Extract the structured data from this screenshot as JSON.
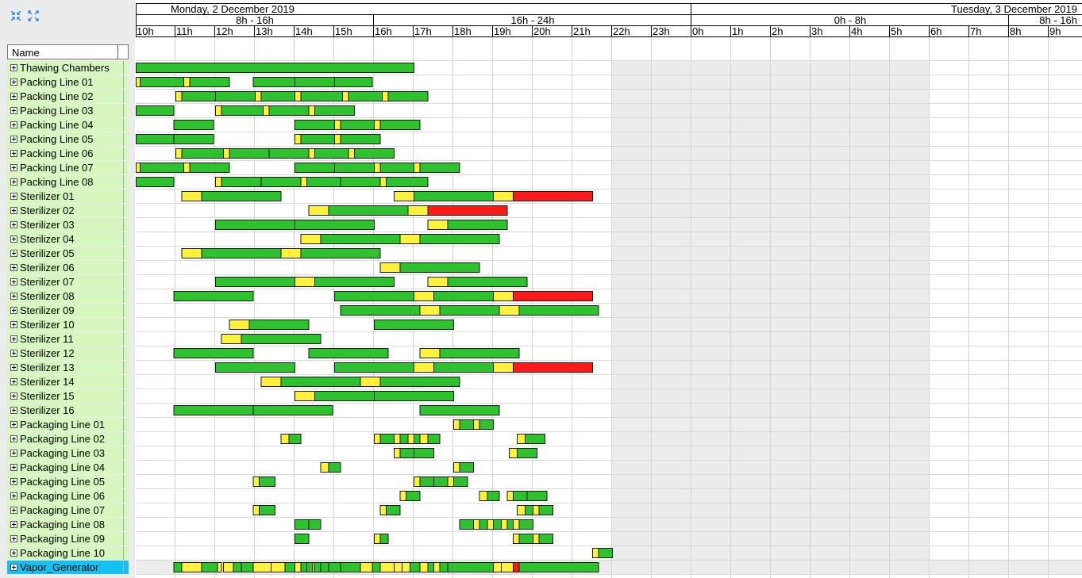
{
  "toolbar": {
    "collapse_icon": "collapse-arrows-icon",
    "expand_icon": "expand-arrows-icon"
  },
  "list": {
    "header": "Name",
    "rows": [
      "Thawing Chambers",
      "Packing Line 01",
      "Packing Line 02",
      "Packing Line 03",
      "Packing Line 04",
      "Packing Line 05",
      "Packing Line 06",
      "Packing Line 07",
      "Packing Line 08",
      "Sterilizer 01",
      "Sterilizer 02",
      "Sterilizer 03",
      "Sterilizer 04",
      "Sterilizer 05",
      "Sterilizer 06",
      "Sterilizer 07",
      "Sterilizer 08",
      "Sterilizer 09",
      "Sterilizer 10",
      "Sterilizer 11",
      "Sterilizer 12",
      "Sterilizer 13",
      "Sterilizer 14",
      "Sterilizer 15",
      "Sterilizer 16",
      "Packaging Line 01",
      "Packaging Line 02",
      "Packaging Line 03",
      "Packaging Line 04",
      "Packaging Line 05",
      "Packaging Line 06",
      "Packaging Line 07",
      "Packaging Line 08",
      "Packaging Line 09",
      "Packaging Line 10",
      "Vapor_Generator"
    ],
    "selected_row": "Vapor_Generator"
  },
  "timeline": {
    "days": [
      {
        "label": "Monday, 2 December 2019",
        "align": "left",
        "start_hour": 8,
        "end_hour": 24
      },
      {
        "label": "Tuesday, 3 December 2019",
        "align": "right",
        "start_hour": 24,
        "end_hour": 40
      }
    ],
    "shifts": [
      {
        "label": "8h - 16h",
        "start_hour": 8,
        "end_hour": 16
      },
      {
        "label": "16h - 24h",
        "start_hour": 16,
        "end_hour": 24
      },
      {
        "label": "0h -  8h",
        "start_hour": 24,
        "end_hour": 32
      },
      {
        "label": "8h - 16h",
        "start_hour": 32,
        "end_hour": 40
      }
    ],
    "hours": [
      "10h",
      "11h",
      "12h",
      "13h",
      "14h",
      "15h",
      "16h",
      "17h",
      "18h",
      "19h",
      "20h",
      "21h",
      "22h",
      "23h",
      "0h",
      "1h",
      "2h",
      "3h",
      "4h",
      "5h",
      "6h",
      "7h",
      "8h",
      "9h"
    ],
    "first_hour": 10,
    "shaded_from_hour": 22,
    "shaded_to_hour": 30,
    "colors": {
      "processing": "#2ec22e",
      "setup": "#fff23a",
      "overdue": "#ff1a1a",
      "shade": "#ececec",
      "label_bg": "#d6f7bd",
      "selected": "#13c2f0"
    }
  },
  "tasks": [
    [
      [
        "g",
        10,
        17
      ]
    ],
    [
      [
        "y",
        10,
        10.1
      ],
      [
        "g",
        10.1,
        11.2
      ],
      [
        "y",
        11.2,
        11.35
      ],
      [
        "g",
        11.35,
        12.35
      ],
      [
        "g",
        12.95,
        14
      ],
      [
        "g",
        14,
        15
      ],
      [
        "g",
        15,
        15.95
      ]
    ],
    [
      [
        "y",
        11,
        11.15
      ],
      [
        "g",
        11.15,
        12
      ],
      [
        "g",
        12,
        13
      ],
      [
        "y",
        13,
        13.15
      ],
      [
        "g",
        13.15,
        14
      ],
      [
        "y",
        14,
        14.15
      ],
      [
        "g",
        14.15,
        15.2
      ],
      [
        "y",
        15.2,
        15.35
      ],
      [
        "g",
        15.35,
        16.2
      ],
      [
        "y",
        16.2,
        16.35
      ],
      [
        "g",
        16.35,
        17.35
      ]
    ],
    [
      [
        "g",
        10,
        10.95
      ],
      [
        "y",
        12,
        12.15
      ],
      [
        "g",
        12.15,
        13.2
      ],
      [
        "y",
        13.2,
        13.35
      ],
      [
        "g",
        13.35,
        14.35
      ],
      [
        "y",
        14.35,
        14.5
      ],
      [
        "g",
        14.5,
        15.5
      ]
    ],
    [
      [
        "g",
        10.95,
        11.95
      ],
      [
        "g",
        14,
        15
      ],
      [
        "y",
        15,
        15.15
      ],
      [
        "g",
        15.15,
        16
      ],
      [
        "y",
        16,
        16.15
      ],
      [
        "g",
        16.15,
        17.15
      ]
    ],
    [
      [
        "g",
        10,
        10.95
      ],
      [
        "g",
        10.95,
        11.95
      ],
      [
        "y",
        14,
        14.15
      ],
      [
        "g",
        14.15,
        15
      ],
      [
        "y",
        15,
        15.15
      ],
      [
        "g",
        15.15,
        16.15
      ]
    ],
    [
      [
        "y",
        11,
        11.15
      ],
      [
        "g",
        11.15,
        12.2
      ],
      [
        "y",
        12.2,
        12.35
      ],
      [
        "g",
        12.35,
        13.35
      ],
      [
        "g",
        13.35,
        14.35
      ],
      [
        "y",
        14.35,
        14.5
      ],
      [
        "g",
        14.5,
        15.35
      ],
      [
        "y",
        15.35,
        15.5
      ],
      [
        "g",
        15.5,
        16.5
      ]
    ],
    [
      [
        "y",
        10,
        10.1
      ],
      [
        "g",
        10.1,
        11.2
      ],
      [
        "y",
        11.2,
        11.35
      ],
      [
        "g",
        11.35,
        12.35
      ],
      [
        "g",
        14,
        15
      ],
      [
        "g",
        15,
        16
      ],
      [
        "y",
        16,
        16.15
      ],
      [
        "g",
        16.15,
        17
      ],
      [
        "y",
        17,
        17.15
      ],
      [
        "g",
        17.15,
        18.15
      ]
    ],
    [
      [
        "g",
        10,
        10.95
      ],
      [
        "y",
        12,
        12.15
      ],
      [
        "g",
        12.15,
        13.15
      ],
      [
        "g",
        13.15,
        14.15
      ],
      [
        "y",
        14.15,
        14.3
      ],
      [
        "g",
        14.3,
        15.15
      ],
      [
        "g",
        15.15,
        16.15
      ],
      [
        "y",
        16.15,
        16.3
      ],
      [
        "g",
        16.3,
        17.35
      ]
    ],
    [
      [
        "y",
        11.15,
        11.65
      ],
      [
        "g",
        11.65,
        13.65
      ],
      [
        "y",
        16.5,
        17
      ],
      [
        "g",
        17,
        19
      ],
      [
        "y",
        19,
        19.5
      ],
      [
        "r",
        19.5,
        21.5
      ]
    ],
    [
      [
        "y",
        14.35,
        14.85
      ],
      [
        "g",
        14.85,
        16.85
      ],
      [
        "y",
        16.85,
        17.35
      ],
      [
        "r",
        17.35,
        19.35
      ]
    ],
    [
      [
        "g",
        12,
        14
      ],
      [
        "g",
        14,
        16
      ],
      [
        "y",
        17.35,
        17.85
      ],
      [
        "g",
        17.85,
        19.35
      ]
    ],
    [
      [
        "y",
        14.15,
        14.65
      ],
      [
        "g",
        14.65,
        16.65
      ],
      [
        "y",
        16.65,
        17.15
      ],
      [
        "g",
        17.15,
        19.15
      ]
    ],
    [
      [
        "y",
        11.15,
        11.65
      ],
      [
        "g",
        11.65,
        13.65
      ],
      [
        "y",
        13.65,
        14.15
      ],
      [
        "g",
        14.15,
        16.15
      ]
    ],
    [
      [
        "y",
        16.15,
        16.65
      ],
      [
        "g",
        16.65,
        18.65
      ]
    ],
    [
      [
        "g",
        12,
        14
      ],
      [
        "y",
        14,
        14.5
      ],
      [
        "g",
        14.5,
        16.5
      ],
      [
        "y",
        17.35,
        17.85
      ],
      [
        "g",
        17.85,
        19.85
      ]
    ],
    [
      [
        "g",
        10.95,
        12.95
      ],
      [
        "g",
        15,
        17
      ],
      [
        "y",
        17,
        17.5
      ],
      [
        "g",
        17.5,
        19
      ],
      [
        "y",
        19,
        19.5
      ],
      [
        "r",
        19.5,
        21.5
      ]
    ],
    [
      [
        "g",
        15.15,
        17.15
      ],
      [
        "y",
        17.15,
        17.65
      ],
      [
        "g",
        17.65,
        19.15
      ],
      [
        "y",
        19.15,
        19.65
      ],
      [
        "g",
        19.65,
        21.65
      ]
    ],
    [
      [
        "y",
        12.35,
        12.85
      ],
      [
        "g",
        12.85,
        14.35
      ],
      [
        "g",
        16,
        18
      ]
    ],
    [
      [
        "y",
        12.15,
        12.65
      ],
      [
        "g",
        12.65,
        14.65
      ]
    ],
    [
      [
        "g",
        10.95,
        12.95
      ],
      [
        "g",
        14.35,
        16.35
      ],
      [
        "y",
        17.15,
        17.65
      ],
      [
        "g",
        17.65,
        19.65
      ]
    ],
    [
      [
        "g",
        12,
        14
      ],
      [
        "g",
        15,
        17
      ],
      [
        "y",
        17,
        17.5
      ],
      [
        "g",
        17.5,
        19
      ],
      [
        "y",
        19,
        19.5
      ],
      [
        "r",
        19.5,
        21.5
      ]
    ],
    [
      [
        "y",
        13.15,
        13.65
      ],
      [
        "g",
        13.65,
        15.65
      ],
      [
        "y",
        15.65,
        16.15
      ],
      [
        "g",
        16.15,
        18.15
      ]
    ],
    [
      [
        "y",
        14,
        14.5
      ],
      [
        "g",
        14.5,
        16
      ],
      [
        "g",
        16,
        18
      ]
    ],
    [
      [
        "g",
        10.95,
        12.95
      ],
      [
        "g",
        12.95,
        14.95
      ],
      [
        "g",
        17.15,
        19.15
      ]
    ],
    [
      [
        "y",
        18,
        18.15
      ],
      [
        "g",
        18.15,
        18.5
      ],
      [
        "y",
        18.5,
        18.65
      ],
      [
        "g",
        18.65,
        19
      ]
    ],
    [
      [
        "y",
        13.65,
        13.85
      ],
      [
        "g",
        13.85,
        14.15
      ],
      [
        "y",
        16,
        16.15
      ],
      [
        "g",
        16.15,
        16.5
      ],
      [
        "y",
        16.5,
        16.65
      ],
      [
        "g",
        16.65,
        16.85
      ],
      [
        "y",
        16.85,
        17
      ],
      [
        "g",
        17,
        17.15
      ],
      [
        "y",
        17.15,
        17.35
      ],
      [
        "g",
        17.35,
        17.65
      ],
      [
        "y",
        19.6,
        19.8
      ],
      [
        "g",
        19.8,
        20.3
      ]
    ],
    [
      [
        "y",
        16.5,
        16.65
      ],
      [
        "g",
        16.65,
        17
      ],
      [
        "g",
        17,
        17.5
      ],
      [
        "y",
        19.4,
        19.6
      ],
      [
        "g",
        19.6,
        20.1
      ]
    ],
    [
      [
        "y",
        14.65,
        14.85
      ],
      [
        "g",
        14.85,
        15.15
      ],
      [
        "y",
        18,
        18.15
      ],
      [
        "g",
        18.15,
        18.5
      ]
    ],
    [
      [
        "y",
        12.95,
        13.1
      ],
      [
        "g",
        13.1,
        13.5
      ],
      [
        "y",
        17,
        17.15
      ],
      [
        "g",
        17.15,
        17.5
      ],
      [
        "g",
        17.5,
        17.85
      ],
      [
        "y",
        17.85,
        18
      ],
      [
        "g",
        18,
        18.35
      ]
    ],
    [
      [
        "y",
        16.65,
        16.8
      ],
      [
        "g",
        16.8,
        17.15
      ],
      [
        "y",
        18.65,
        18.85
      ],
      [
        "g",
        18.85,
        19.15
      ],
      [
        "y",
        19.35,
        19.5
      ],
      [
        "g",
        19.5,
        19.85
      ],
      [
        "g",
        19.85,
        20.35
      ]
    ],
    [
      [
        "y",
        12.95,
        13.1
      ],
      [
        "g",
        13.1,
        13.5
      ],
      [
        "y",
        16.15,
        16.3
      ],
      [
        "g",
        16.3,
        16.65
      ],
      [
        "y",
        19.6,
        19.8
      ],
      [
        "g",
        19.8,
        20
      ],
      [
        "y",
        20,
        20.15
      ],
      [
        "g",
        20.15,
        20.5
      ]
    ],
    [
      [
        "g",
        14,
        14.35
      ],
      [
        "g",
        14.35,
        14.65
      ],
      [
        "g",
        18.15,
        18.5
      ],
      [
        "y",
        18.5,
        18.65
      ],
      [
        "g",
        18.65,
        18.85
      ],
      [
        "y",
        18.85,
        19
      ],
      [
        "g",
        19,
        19.2
      ],
      [
        "y",
        19.2,
        19.35
      ],
      [
        "g",
        19.35,
        19.5
      ],
      [
        "y",
        19.5,
        19.65
      ],
      [
        "g",
        19.65,
        20
      ]
    ],
    [
      [
        "g",
        14,
        14.35
      ],
      [
        "y",
        16,
        16.15
      ],
      [
        "g",
        16.15,
        16.35
      ],
      [
        "y",
        19.5,
        19.65
      ],
      [
        "g",
        19.65,
        20
      ],
      [
        "y",
        20,
        20.15
      ],
      [
        "g",
        20.15,
        20.5
      ]
    ],
    [
      [
        "y",
        21.5,
        21.65
      ],
      [
        "g",
        21.65,
        22
      ]
    ],
    [
      [
        "g",
        10.95,
        11.15
      ],
      [
        "y",
        11.15,
        11.65
      ],
      [
        "g",
        11.65,
        12.05
      ],
      [
        "y",
        12.05,
        12.15
      ],
      [
        "y",
        12.2,
        12.45
      ],
      [
        "g",
        12.45,
        12.65
      ],
      [
        "g",
        12.65,
        12.95
      ],
      [
        "y",
        12.95,
        13.4
      ],
      [
        "y",
        13.4,
        13.75
      ],
      [
        "g",
        13.75,
        14
      ],
      [
        "y",
        14,
        14.15
      ],
      [
        "g",
        14.15,
        14.3
      ],
      [
        "g",
        14.3,
        14.45
      ],
      [
        "y",
        14.45,
        14.5
      ],
      [
        "g",
        14.5,
        14.65
      ],
      [
        "g",
        14.65,
        14.85
      ],
      [
        "g",
        14.85,
        15.15
      ],
      [
        "g",
        15.15,
        15.65
      ],
      [
        "y",
        15.65,
        15.95
      ],
      [
        "g",
        15.95,
        16.15
      ],
      [
        "y",
        16.15,
        16.5
      ],
      [
        "y",
        16.5,
        16.7
      ],
      [
        "y",
        16.7,
        16.9
      ],
      [
        "g",
        16.9,
        17.15
      ],
      [
        "y",
        17.15,
        17.35
      ],
      [
        "g",
        17.35,
        17.5
      ],
      [
        "y",
        17.5,
        17.65
      ],
      [
        "g",
        17.65,
        17.85
      ],
      [
        "g",
        17.85,
        19
      ],
      [
        "y",
        19,
        19.2
      ],
      [
        "y",
        19.2,
        19.5
      ],
      [
        "r",
        19.5,
        19.65
      ],
      [
        "g",
        19.65,
        21.65
      ]
    ]
  ]
}
